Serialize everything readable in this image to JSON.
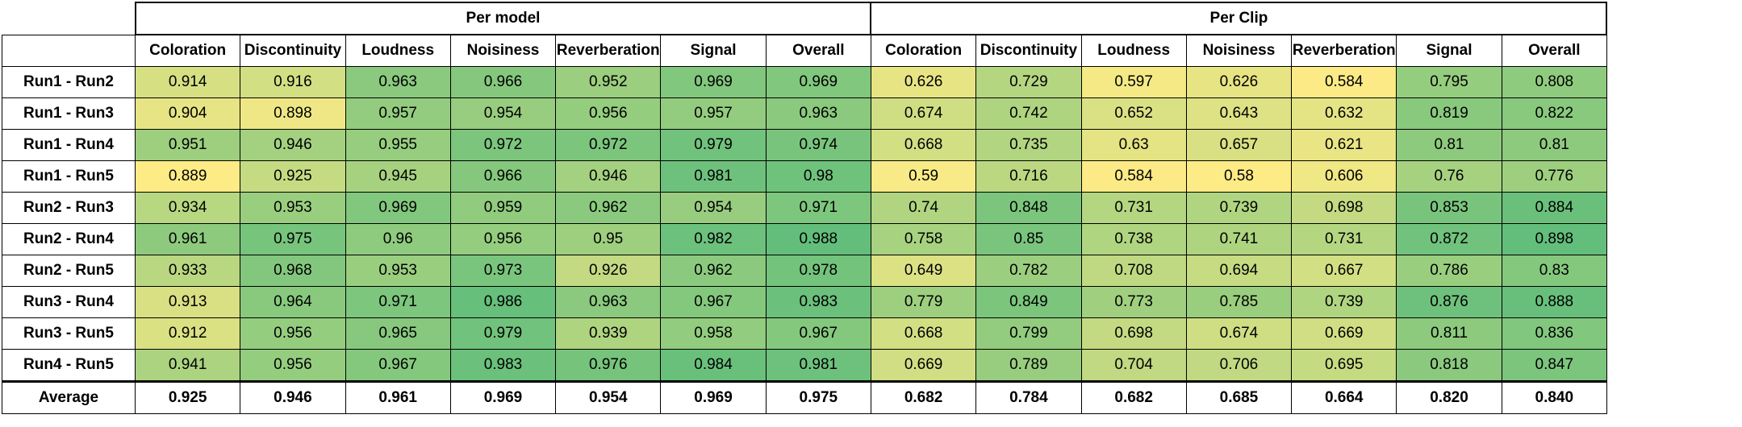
{
  "table": {
    "groups": [
      {
        "title": "Per model",
        "columns": [
          "Coloration",
          "Discontinuity",
          "Loudness",
          "Noisiness",
          "Reverberation",
          "Signal",
          "Overall"
        ]
      },
      {
        "title": "Per Clip",
        "columns": [
          "Coloration",
          "Discontinuity",
          "Loudness",
          "Noisiness",
          "Reverberation",
          "Signal",
          "Overall"
        ]
      }
    ],
    "rows": [
      {
        "label": "Run1 - Run2",
        "cells": [
          "0.914",
          "0.916",
          "0.963",
          "0.966",
          "0.952",
          "0.969",
          "0.969",
          "0.626",
          "0.729",
          "0.597",
          "0.626",
          "0.584",
          "0.795",
          "0.808"
        ]
      },
      {
        "label": "Run1 - Run3",
        "cells": [
          "0.904",
          "0.898",
          "0.957",
          "0.954",
          "0.956",
          "0.957",
          "0.963",
          "0.674",
          "0.742",
          "0.652",
          "0.643",
          "0.632",
          "0.819",
          "0.822"
        ]
      },
      {
        "label": "Run1 - Run4",
        "cells": [
          "0.951",
          "0.946",
          "0.955",
          "0.972",
          "0.972",
          "0.979",
          "0.974",
          "0.668",
          "0.735",
          "0.63",
          "0.657",
          "0.621",
          "0.81",
          "0.81"
        ]
      },
      {
        "label": "Run1 - Run5",
        "cells": [
          "0.889",
          "0.925",
          "0.945",
          "0.966",
          "0.946",
          "0.981",
          "0.98",
          "0.59",
          "0.716",
          "0.584",
          "0.58",
          "0.606",
          "0.76",
          "0.776"
        ]
      },
      {
        "label": "Run2 - Run3",
        "cells": [
          "0.934",
          "0.953",
          "0.969",
          "0.959",
          "0.962",
          "0.954",
          "0.971",
          "0.74",
          "0.848",
          "0.731",
          "0.739",
          "0.698",
          "0.853",
          "0.884"
        ]
      },
      {
        "label": "Run2 - Run4",
        "cells": [
          "0.961",
          "0.975",
          "0.96",
          "0.956",
          "0.95",
          "0.982",
          "0.988",
          "0.758",
          "0.85",
          "0.738",
          "0.741",
          "0.731",
          "0.872",
          "0.898"
        ]
      },
      {
        "label": "Run2 - Run5",
        "cells": [
          "0.933",
          "0.968",
          "0.953",
          "0.973",
          "0.926",
          "0.962",
          "0.978",
          "0.649",
          "0.782",
          "0.708",
          "0.694",
          "0.667",
          "0.786",
          "0.83"
        ]
      },
      {
        "label": "Run3 - Run4",
        "cells": [
          "0.913",
          "0.964",
          "0.971",
          "0.986",
          "0.963",
          "0.967",
          "0.983",
          "0.779",
          "0.849",
          "0.773",
          "0.785",
          "0.739",
          "0.876",
          "0.888"
        ]
      },
      {
        "label": "Run3 - Run5",
        "cells": [
          "0.912",
          "0.956",
          "0.965",
          "0.979",
          "0.939",
          "0.958",
          "0.967",
          "0.668",
          "0.799",
          "0.698",
          "0.674",
          "0.669",
          "0.811",
          "0.836"
        ]
      },
      {
        "label": "Run4 - Run5",
        "cells": [
          "0.941",
          "0.956",
          "0.967",
          "0.983",
          "0.976",
          "0.984",
          "0.981",
          "0.669",
          "0.789",
          "0.704",
          "0.706",
          "0.695",
          "0.818",
          "0.847"
        ]
      }
    ],
    "average": {
      "label": "Average",
      "cells": [
        "0.925",
        "0.946",
        "0.961",
        "0.969",
        "0.954",
        "0.969",
        "0.975",
        "0.682",
        "0.784",
        "0.682",
        "0.685",
        "0.664",
        "0.820",
        "0.840"
      ]
    },
    "color_scale": {
      "low": "#fdeb86",
      "high": "#63be7b"
    }
  }
}
